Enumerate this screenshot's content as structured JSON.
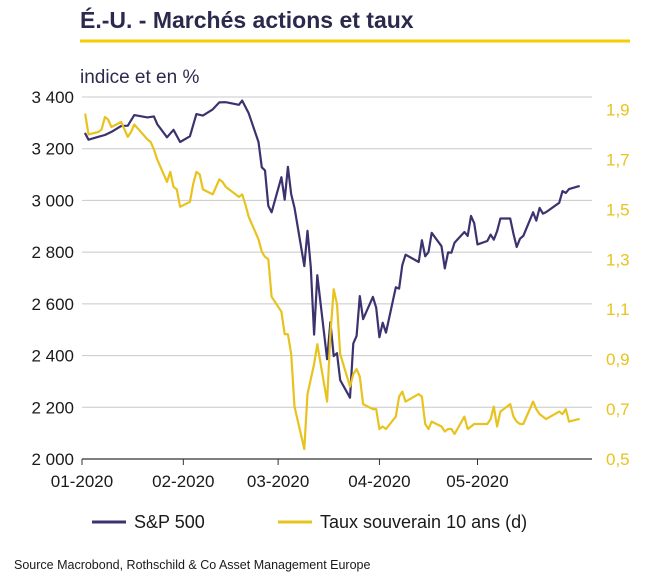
{
  "title": "É.-U. - Marchés actions et taux",
  "subtitle": "indice et en %",
  "source": "Source Macrobond, Rothschild & Co Asset Management Europe",
  "colors": {
    "sp500": "#3b3370",
    "taux": "#e8c31f",
    "title_underline": "#f5cd00"
  },
  "chart_data": {
    "type": "line",
    "y_left": {
      "ticks": [
        2000,
        2200,
        2400,
        2600,
        2800,
        3000,
        3200,
        3400
      ],
      "tick_labels": [
        "2 000",
        "2 200",
        "2 400",
        "2 600",
        "2 800",
        "3 000",
        "3 200",
        "3 400"
      ],
      "lim": [
        2000,
        3400
      ]
    },
    "y_right": {
      "ticks": [
        0.5,
        0.7,
        0.9,
        1.1,
        1.3,
        1.5,
        1.7,
        1.9
      ],
      "tick_labels": [
        "0,5",
        "0,7",
        "0,9",
        "1,1",
        "1,3",
        "1,5",
        "1,7",
        "1,9"
      ],
      "lim": [
        0.5,
        1.95
      ]
    },
    "x_labels": [
      "01-2020",
      "02-2020",
      "03-2020",
      "04-2020",
      "05-2020"
    ],
    "x_lim": [
      "2020-01-01",
      "2020-05-29"
    ],
    "grid": true,
    "legend_position": "bottom",
    "series": [
      {
        "name": "S&P 500",
        "axis": "left",
        "color": "#3b3370",
        "points": [
          [
            "2020-01-02",
            3258
          ],
          [
            "2020-01-03",
            3235
          ],
          [
            "2020-01-06",
            3246
          ],
          [
            "2020-01-08",
            3253
          ],
          [
            "2020-01-10",
            3265
          ],
          [
            "2020-01-13",
            3288
          ],
          [
            "2020-01-15",
            3289
          ],
          [
            "2020-01-17",
            3330
          ],
          [
            "2020-01-21",
            3321
          ],
          [
            "2020-01-23",
            3325
          ],
          [
            "2020-01-24",
            3295
          ],
          [
            "2020-01-27",
            3244
          ],
          [
            "2020-01-29",
            3273
          ],
          [
            "2020-01-31",
            3226
          ],
          [
            "2020-02-03",
            3248
          ],
          [
            "2020-02-05",
            3334
          ],
          [
            "2020-02-07",
            3328
          ],
          [
            "2020-02-10",
            3352
          ],
          [
            "2020-02-12",
            3379
          ],
          [
            "2020-02-14",
            3380
          ],
          [
            "2020-02-18",
            3370
          ],
          [
            "2020-02-19",
            3386
          ],
          [
            "2020-02-21",
            3337
          ],
          [
            "2020-02-24",
            3226
          ],
          [
            "2020-02-25",
            3128
          ],
          [
            "2020-02-26",
            3116
          ],
          [
            "2020-02-27",
            2979
          ],
          [
            "2020-02-28",
            2954
          ],
          [
            "2020-03-02",
            3090
          ],
          [
            "2020-03-03",
            3003
          ],
          [
            "2020-03-04",
            3130
          ],
          [
            "2020-03-05",
            3024
          ],
          [
            "2020-03-06",
            2972
          ],
          [
            "2020-03-09",
            2746
          ],
          [
            "2020-03-10",
            2882
          ],
          [
            "2020-03-11",
            2741
          ],
          [
            "2020-03-12",
            2481
          ],
          [
            "2020-03-13",
            2711
          ],
          [
            "2020-03-16",
            2386
          ],
          [
            "2020-03-17",
            2529
          ],
          [
            "2020-03-18",
            2398
          ],
          [
            "2020-03-19",
            2409
          ],
          [
            "2020-03-20",
            2305
          ],
          [
            "2020-03-23",
            2237
          ],
          [
            "2020-03-24",
            2447
          ],
          [
            "2020-03-25",
            2476
          ],
          [
            "2020-03-26",
            2630
          ],
          [
            "2020-03-27",
            2541
          ],
          [
            "2020-03-30",
            2627
          ],
          [
            "2020-03-31",
            2585
          ],
          [
            "2020-04-01",
            2471
          ],
          [
            "2020-04-02",
            2527
          ],
          [
            "2020-04-03",
            2489
          ],
          [
            "2020-04-06",
            2664
          ],
          [
            "2020-04-07",
            2659
          ],
          [
            "2020-04-08",
            2750
          ],
          [
            "2020-04-09",
            2790
          ],
          [
            "2020-04-13",
            2762
          ],
          [
            "2020-04-14",
            2846
          ],
          [
            "2020-04-15",
            2784
          ],
          [
            "2020-04-16",
            2800
          ],
          [
            "2020-04-17",
            2875
          ],
          [
            "2020-04-20",
            2823
          ],
          [
            "2020-04-21",
            2737
          ],
          [
            "2020-04-22",
            2799
          ],
          [
            "2020-04-23",
            2798
          ],
          [
            "2020-04-24",
            2837
          ],
          [
            "2020-04-27",
            2878
          ],
          [
            "2020-04-28",
            2863
          ],
          [
            "2020-04-29",
            2940
          ],
          [
            "2020-04-30",
            2912
          ],
          [
            "2020-05-01",
            2830
          ],
          [
            "2020-05-04",
            2843
          ],
          [
            "2020-05-05",
            2868
          ],
          [
            "2020-05-06",
            2848
          ],
          [
            "2020-05-07",
            2881
          ],
          [
            "2020-05-08",
            2930
          ],
          [
            "2020-05-11",
            2930
          ],
          [
            "2020-05-12",
            2870
          ],
          [
            "2020-05-13",
            2820
          ],
          [
            "2020-05-14",
            2852
          ],
          [
            "2020-05-15",
            2863
          ],
          [
            "2020-05-18",
            2954
          ],
          [
            "2020-05-19",
            2922
          ],
          [
            "2020-05-20",
            2971
          ],
          [
            "2020-05-21",
            2949
          ],
          [
            "2020-05-22",
            2955
          ],
          [
            "2020-05-26",
            2991
          ],
          [
            "2020-05-27",
            3036
          ],
          [
            "2020-05-28",
            3029
          ],
          [
            "2020-05-29",
            3044
          ],
          [
            "2020-06-01",
            3055
          ]
        ]
      },
      {
        "name": "Taux souverain 10 ans (d)",
        "axis": "right",
        "color": "#e8c31f",
        "points": [
          [
            "2020-01-02",
            1.88
          ],
          [
            "2020-01-03",
            1.8
          ],
          [
            "2020-01-06",
            1.81
          ],
          [
            "2020-01-07",
            1.82
          ],
          [
            "2020-01-08",
            1.87
          ],
          [
            "2020-01-09",
            1.86
          ],
          [
            "2020-01-10",
            1.83
          ],
          [
            "2020-01-13",
            1.85
          ],
          [
            "2020-01-14",
            1.82
          ],
          [
            "2020-01-15",
            1.79
          ],
          [
            "2020-01-16",
            1.81
          ],
          [
            "2020-01-17",
            1.84
          ],
          [
            "2020-01-21",
            1.78
          ],
          [
            "2020-01-22",
            1.77
          ],
          [
            "2020-01-23",
            1.74
          ],
          [
            "2020-01-24",
            1.7
          ],
          [
            "2020-01-27",
            1.61
          ],
          [
            "2020-01-28",
            1.65
          ],
          [
            "2020-01-29",
            1.59
          ],
          [
            "2020-01-30",
            1.58
          ],
          [
            "2020-01-31",
            1.51
          ],
          [
            "2020-02-03",
            1.53
          ],
          [
            "2020-02-04",
            1.6
          ],
          [
            "2020-02-05",
            1.65
          ],
          [
            "2020-02-06",
            1.64
          ],
          [
            "2020-02-07",
            1.58
          ],
          [
            "2020-02-10",
            1.56
          ],
          [
            "2020-02-11",
            1.59
          ],
          [
            "2020-02-12",
            1.62
          ],
          [
            "2020-02-13",
            1.61
          ],
          [
            "2020-02-14",
            1.59
          ],
          [
            "2020-02-18",
            1.55
          ],
          [
            "2020-02-19",
            1.56
          ],
          [
            "2020-02-20",
            1.52
          ],
          [
            "2020-02-21",
            1.47
          ],
          [
            "2020-02-24",
            1.38
          ],
          [
            "2020-02-25",
            1.33
          ],
          [
            "2020-02-26",
            1.31
          ],
          [
            "2020-02-27",
            1.3
          ],
          [
            "2020-02-28",
            1.15
          ],
          [
            "2020-03-02",
            1.09
          ],
          [
            "2020-03-03",
            1.0
          ],
          [
            "2020-03-04",
            1.0
          ],
          [
            "2020-03-05",
            0.92
          ],
          [
            "2020-03-06",
            0.71
          ],
          [
            "2020-03-09",
            0.54
          ],
          [
            "2020-03-10",
            0.76
          ],
          [
            "2020-03-11",
            0.82
          ],
          [
            "2020-03-12",
            0.88
          ],
          [
            "2020-03-13",
            0.96
          ],
          [
            "2020-03-16",
            0.73
          ],
          [
            "2020-03-17",
            1.0
          ],
          [
            "2020-03-18",
            1.18
          ],
          [
            "2020-03-19",
            1.12
          ],
          [
            "2020-03-20",
            0.92
          ],
          [
            "2020-03-23",
            0.79
          ],
          [
            "2020-03-24",
            0.84
          ],
          [
            "2020-03-25",
            0.86
          ],
          [
            "2020-03-26",
            0.83
          ],
          [
            "2020-03-27",
            0.72
          ],
          [
            "2020-03-30",
            0.7
          ],
          [
            "2020-03-31",
            0.7
          ],
          [
            "2020-04-01",
            0.62
          ],
          [
            "2020-04-02",
            0.63
          ],
          [
            "2020-04-03",
            0.62
          ],
          [
            "2020-04-06",
            0.67
          ],
          [
            "2020-04-07",
            0.75
          ],
          [
            "2020-04-08",
            0.77
          ],
          [
            "2020-04-09",
            0.73
          ],
          [
            "2020-04-13",
            0.76
          ],
          [
            "2020-04-14",
            0.75
          ],
          [
            "2020-04-15",
            0.64
          ],
          [
            "2020-04-16",
            0.62
          ],
          [
            "2020-04-17",
            0.65
          ],
          [
            "2020-04-20",
            0.63
          ],
          [
            "2020-04-21",
            0.61
          ],
          [
            "2020-04-22",
            0.62
          ],
          [
            "2020-04-23",
            0.62
          ],
          [
            "2020-04-24",
            0.6
          ],
          [
            "2020-04-27",
            0.67
          ],
          [
            "2020-04-28",
            0.62
          ],
          [
            "2020-04-29",
            0.63
          ],
          [
            "2020-04-30",
            0.64
          ],
          [
            "2020-05-01",
            0.64
          ],
          [
            "2020-05-04",
            0.64
          ],
          [
            "2020-05-05",
            0.66
          ],
          [
            "2020-05-06",
            0.71
          ],
          [
            "2020-05-07",
            0.63
          ],
          [
            "2020-05-08",
            0.69
          ],
          [
            "2020-05-11",
            0.72
          ],
          [
            "2020-05-12",
            0.67
          ],
          [
            "2020-05-13",
            0.65
          ],
          [
            "2020-05-14",
            0.64
          ],
          [
            "2020-05-15",
            0.64
          ],
          [
            "2020-05-18",
            0.73
          ],
          [
            "2020-05-19",
            0.7
          ],
          [
            "2020-05-20",
            0.68
          ],
          [
            "2020-05-21",
            0.67
          ],
          [
            "2020-05-22",
            0.66
          ],
          [
            "2020-05-26",
            0.69
          ],
          [
            "2020-05-27",
            0.68
          ],
          [
            "2020-05-28",
            0.7
          ],
          [
            "2020-05-29",
            0.65
          ],
          [
            "2020-06-01",
            0.66
          ]
        ]
      }
    ]
  }
}
